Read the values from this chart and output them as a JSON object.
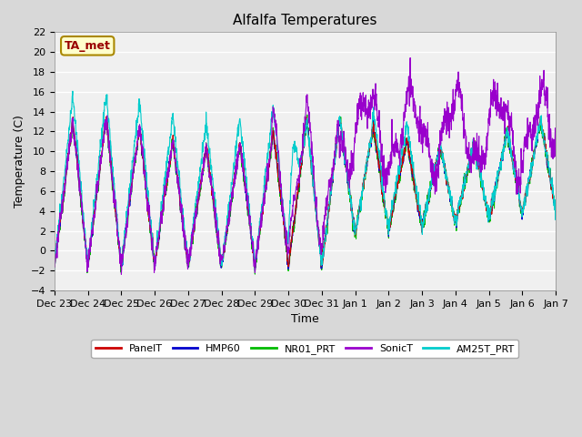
{
  "title": "Alfalfa Temperatures",
  "xlabel": "Time",
  "ylabel": "Temperature (C)",
  "ylim": [
    -4,
    22
  ],
  "yticks": [
    -4,
    -2,
    0,
    2,
    4,
    6,
    8,
    10,
    12,
    14,
    16,
    18,
    20,
    22
  ],
  "series_colors": {
    "PanelT": "#cc0000",
    "HMP60": "#0000cc",
    "NR01_PRT": "#00bb00",
    "SonicT": "#9900cc",
    "AM25T_PRT": "#00cccc"
  },
  "legend_label": "TA_met",
  "legend_box_facecolor": "#ffffcc",
  "legend_text_color": "#990000",
  "fig_facecolor": "#d8d8d8",
  "ax_facecolor": "#f0f0f0",
  "grid_color": "#ffffff",
  "xtick_labels": [
    "Dec 23",
    "Dec 24",
    "Dec 25",
    "Dec 26",
    "Dec 27",
    "Dec 28",
    "Dec 29",
    "Dec 30",
    "Dec 31",
    "Jan 1",
    "Jan 2",
    "Jan 3",
    "Jan 4",
    "Jan 5",
    "Jan 6",
    "Jan 7"
  ]
}
